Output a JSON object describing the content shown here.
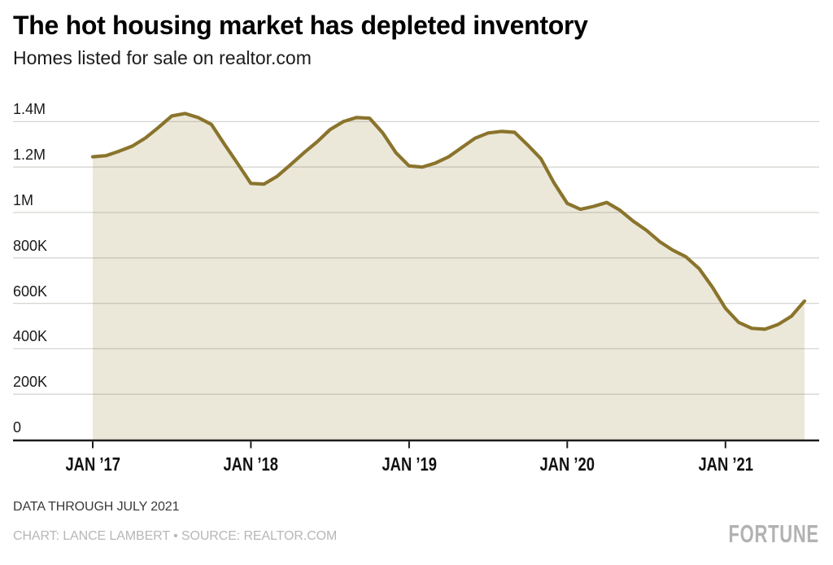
{
  "header": {
    "title": "The hot housing market has depleted inventory",
    "subtitle": "Homes listed for sale on realtor.com"
  },
  "footer": {
    "note": "DATA THROUGH JULY 2021",
    "credit": "CHART: LANCE LAMBERT • SOURCE: REALTOR.COM",
    "brand": "FORTUNE"
  },
  "chart_data": {
    "type": "area",
    "title": "The hot housing market has depleted inventory",
    "subtitle": "Homes listed for sale on realtor.com",
    "ylabel": "Homes listed for sale",
    "xlabel": "",
    "ylim": [
      0,
      1400000
    ],
    "grid": true,
    "legend_position": "none",
    "x": [
      "Jan 2017",
      "Feb 2017",
      "Mar 2017",
      "Apr 2017",
      "May 2017",
      "Jun 2017",
      "Jul 2017",
      "Aug 2017",
      "Sep 2017",
      "Oct 2017",
      "Nov 2017",
      "Dec 2017",
      "Jan 2018",
      "Feb 2018",
      "Mar 2018",
      "Apr 2018",
      "May 2018",
      "Jun 2018",
      "Jul 2018",
      "Aug 2018",
      "Sep 2018",
      "Oct 2018",
      "Nov 2018",
      "Dec 2018",
      "Jan 2019",
      "Feb 2019",
      "Mar 2019",
      "Apr 2019",
      "May 2019",
      "Jun 2019",
      "Jul 2019",
      "Aug 2019",
      "Sep 2019",
      "Oct 2019",
      "Nov 2019",
      "Dec 2019",
      "Jan 2020",
      "Feb 2020",
      "Mar 2020",
      "Apr 2020",
      "May 2020",
      "Jun 2020",
      "Jul 2020",
      "Aug 2020",
      "Sep 2020",
      "Oct 2020",
      "Nov 2020",
      "Dec 2020",
      "Jan 2021",
      "Feb 2021",
      "Mar 2021",
      "Apr 2021",
      "May 2021",
      "Jun 2021",
      "Jul 2021"
    ],
    "values": [
      1245000,
      1250000,
      1270000,
      1292000,
      1328000,
      1375000,
      1425000,
      1436000,
      1418000,
      1388000,
      1300000,
      1215000,
      1128000,
      1125000,
      1160000,
      1210000,
      1262000,
      1310000,
      1365000,
      1400000,
      1418000,
      1415000,
      1350000,
      1263000,
      1205000,
      1200000,
      1218000,
      1245000,
      1286000,
      1327000,
      1350000,
      1357000,
      1353000,
      1297000,
      1237000,
      1130000,
      1040000,
      1014000,
      1027000,
      1044000,
      1010000,
      962000,
      922000,
      872000,
      834000,
      805000,
      753000,
      672000,
      578000,
      516000,
      490000,
      486000,
      507000,
      543000,
      610000
    ],
    "y_tick_labels": [
      "0",
      "200K",
      "400K",
      "600K",
      "800K",
      "1M",
      "1.2M",
      "1.4M"
    ],
    "x_tick_labels": [
      "JAN ’17",
      "JAN ’18",
      "JAN ’19",
      "JAN ’20",
      "JAN ’21"
    ],
    "x_tick_month_indexes": [
      0,
      12,
      24,
      36,
      48
    ],
    "line_color": "#8a742c",
    "fill_color": "#ebe8da",
    "grid_color": "#d9d9d9",
    "axis_color": "#1c1c1c",
    "text_color": "#1a1a1a",
    "brand_color": "#b2b2b2"
  }
}
